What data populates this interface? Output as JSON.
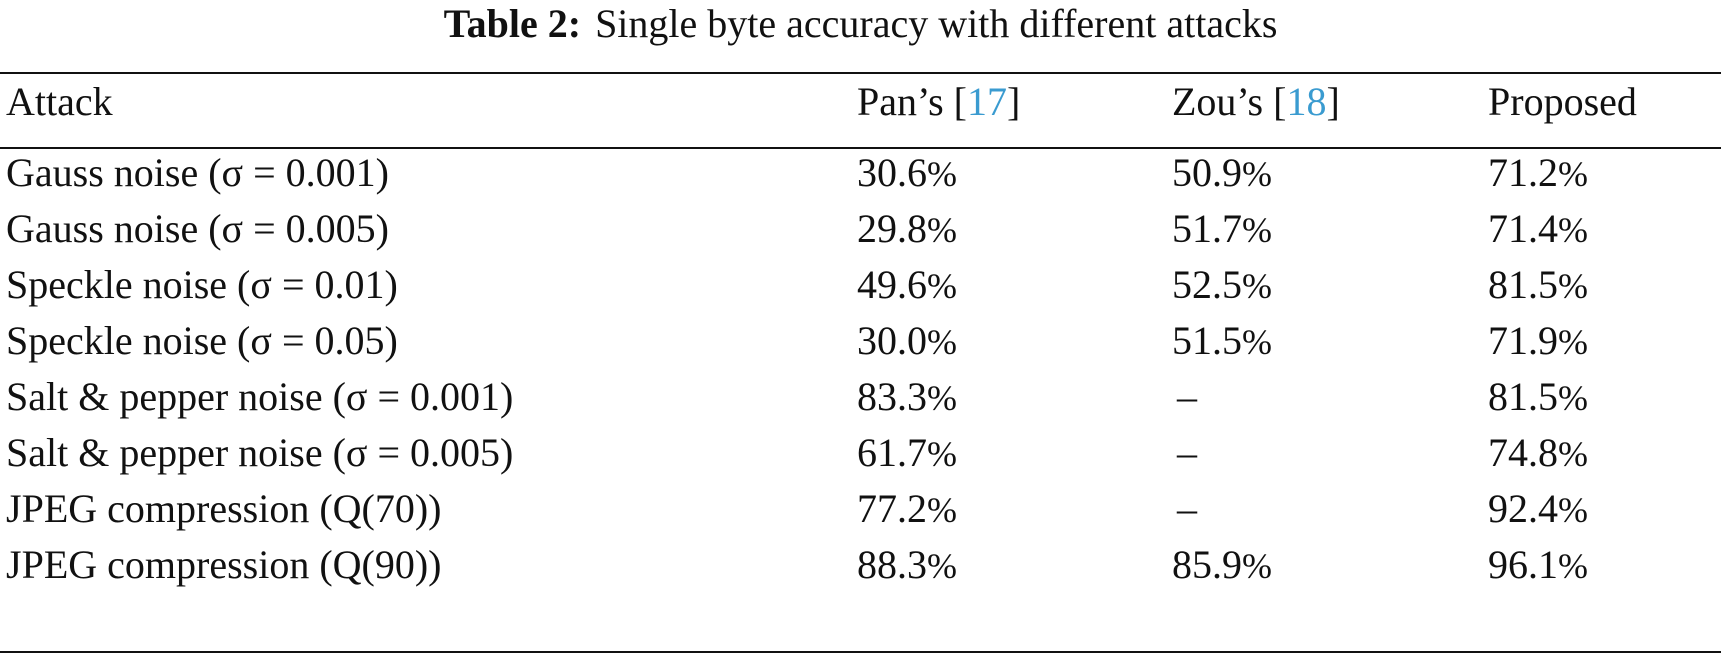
{
  "caption": {
    "label": "Table 2:",
    "text": "Single byte accuracy with different attacks"
  },
  "table": {
    "headers": [
      {
        "text": "Attack"
      },
      {
        "prefix": "Pan’s [",
        "ref": "17",
        "suffix": "]"
      },
      {
        "prefix": "Zou’s [",
        "ref": "18",
        "suffix": "]"
      },
      {
        "text": "Proposed"
      }
    ],
    "rows": [
      {
        "attack": "Gauss noise (σ = 0.001)",
        "pan": "30.6",
        "zou": "50.9",
        "proposed": "71.2"
      },
      {
        "attack": "Gauss noise (σ = 0.005)",
        "pan": "29.8",
        "zou": "51.7",
        "proposed": "71.4"
      },
      {
        "attack": "Speckle noise (σ = 0.01)",
        "pan": "49.6",
        "zou": "52.5",
        "proposed": "81.5"
      },
      {
        "attack": "Speckle noise (σ = 0.05)",
        "pan": "30.0",
        "zou": "51.5",
        "proposed": "71.9"
      },
      {
        "attack": "Salt & pepper noise (σ = 0.001)",
        "pan": "83.3",
        "zou": "–",
        "proposed": "81.5"
      },
      {
        "attack": "Salt & pepper noise (σ = 0.005)",
        "pan": "61.7",
        "zou": "–",
        "proposed": "74.8"
      },
      {
        "attack": "JPEG compression (Q(70))",
        "pan": "77.2",
        "zou": "–",
        "proposed": "92.4"
      },
      {
        "attack": "JPEG compression (Q(90))",
        "pan": "88.3",
        "zou": "85.9",
        "proposed": "96.1"
      }
    ],
    "percent_sign": "%"
  },
  "colors": {
    "text": "#111111",
    "link": "#3a9bd0",
    "rule": "#111111"
  }
}
